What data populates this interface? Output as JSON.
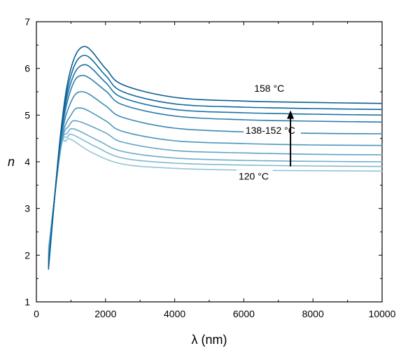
{
  "chart_data": {
    "type": "line",
    "title": "",
    "xlabel": "λ (nm)",
    "ylabel": "n",
    "xlim": [
      0,
      10000
    ],
    "ylim": [
      1,
      7
    ],
    "x_ticks": [
      0,
      2000,
      4000,
      6000,
      8000,
      10000
    ],
    "x_tick_labels": [
      "0",
      "2000",
      "4000",
      "6000",
      "8000",
      "10000"
    ],
    "y_ticks": [
      1,
      2,
      3,
      4,
      5,
      6,
      7
    ],
    "y_tick_labels": [
      "1",
      "2",
      "3",
      "4",
      "5",
      "6",
      "7"
    ],
    "grid": false,
    "legend": "none",
    "series": [
      {
        "color": "#0b5f93",
        "x": [
          350,
          700,
          1000,
          1400,
          2000,
          2500,
          4000,
          6000,
          8000,
          10000
        ],
        "y": [
          1.7,
          4.6,
          6.0,
          6.47,
          6.0,
          5.65,
          5.38,
          5.3,
          5.27,
          5.25
        ]
      },
      {
        "color": "#12689c",
        "x": [
          350,
          700,
          1000,
          1400,
          2000,
          2500,
          4000,
          6000,
          8000,
          10000
        ],
        "y": [
          1.75,
          4.55,
          5.85,
          6.28,
          5.85,
          5.5,
          5.24,
          5.17,
          5.14,
          5.12
        ]
      },
      {
        "color": "#1b72a5",
        "x": [
          350,
          700,
          1000,
          1400,
          2000,
          2500,
          4000,
          6000,
          8000,
          10000
        ],
        "y": [
          1.8,
          4.5,
          5.7,
          6.08,
          5.7,
          5.37,
          5.12,
          5.05,
          5.02,
          5.0
        ]
      },
      {
        "color": "#2a7dad",
        "x": [
          350,
          700,
          1000,
          1350,
          2000,
          2500,
          4000,
          6000,
          8000,
          10000
        ],
        "y": [
          1.85,
          4.45,
          5.55,
          5.85,
          5.52,
          5.22,
          4.98,
          4.9,
          4.87,
          4.85
        ]
      },
      {
        "color": "#3a89b5",
        "x": [
          350,
          700,
          1000,
          1350,
          2000,
          2500,
          4000,
          6000,
          8000,
          10000
        ],
        "y": [
          1.9,
          4.4,
          5.28,
          5.5,
          5.2,
          4.95,
          4.72,
          4.64,
          4.61,
          4.6
        ]
      },
      {
        "color": "#4b96bd",
        "x": [
          350,
          700,
          1000,
          1300,
          2000,
          2500,
          4000,
          6000,
          8000,
          10000
        ],
        "y": [
          1.95,
          4.35,
          5.0,
          5.15,
          4.88,
          4.65,
          4.45,
          4.39,
          4.36,
          4.35
        ]
      },
      {
        "color": "#5da2c4",
        "x": [
          350,
          700,
          950,
          1200,
          2000,
          2500,
          4000,
          6000,
          8000,
          10000
        ],
        "y": [
          2.0,
          4.3,
          4.78,
          4.87,
          4.62,
          4.42,
          4.24,
          4.19,
          4.16,
          4.15
        ]
      },
      {
        "color": "#6fadcb",
        "x": [
          350,
          700,
          900,
          1100,
          1800,
          2500,
          4000,
          6000,
          8000,
          10000
        ],
        "y": [
          2.05,
          4.28,
          4.62,
          4.7,
          4.45,
          4.22,
          4.08,
          4.03,
          4.01,
          4.0
        ]
      },
      {
        "color": "#82b9d2",
        "x": [
          350,
          700,
          900,
          1050,
          1700,
          2500,
          4000,
          6000,
          8000,
          10000
        ],
        "y": [
          2.1,
          4.27,
          4.53,
          4.58,
          4.33,
          4.08,
          3.97,
          3.93,
          3.91,
          3.9
        ]
      },
      {
        "color": "#95c4d9",
        "x": [
          350,
          700,
          850,
          1000,
          1600,
          2500,
          4000,
          6000,
          8000,
          10000
        ],
        "y": [
          2.15,
          4.25,
          4.44,
          4.48,
          4.2,
          3.95,
          3.86,
          3.82,
          3.81,
          3.8
        ]
      }
    ],
    "annotations": [
      {
        "text": "158 °C",
        "x": 6300,
        "y": 5.5
      },
      {
        "text": "138-152 °C",
        "x": 6050,
        "y": 4.6
      },
      {
        "text": "120 °C",
        "x": 5850,
        "y": 3.62
      }
    ],
    "arrow": {
      "x": 7350,
      "y_from": 3.9,
      "y_to": 5.1
    }
  }
}
